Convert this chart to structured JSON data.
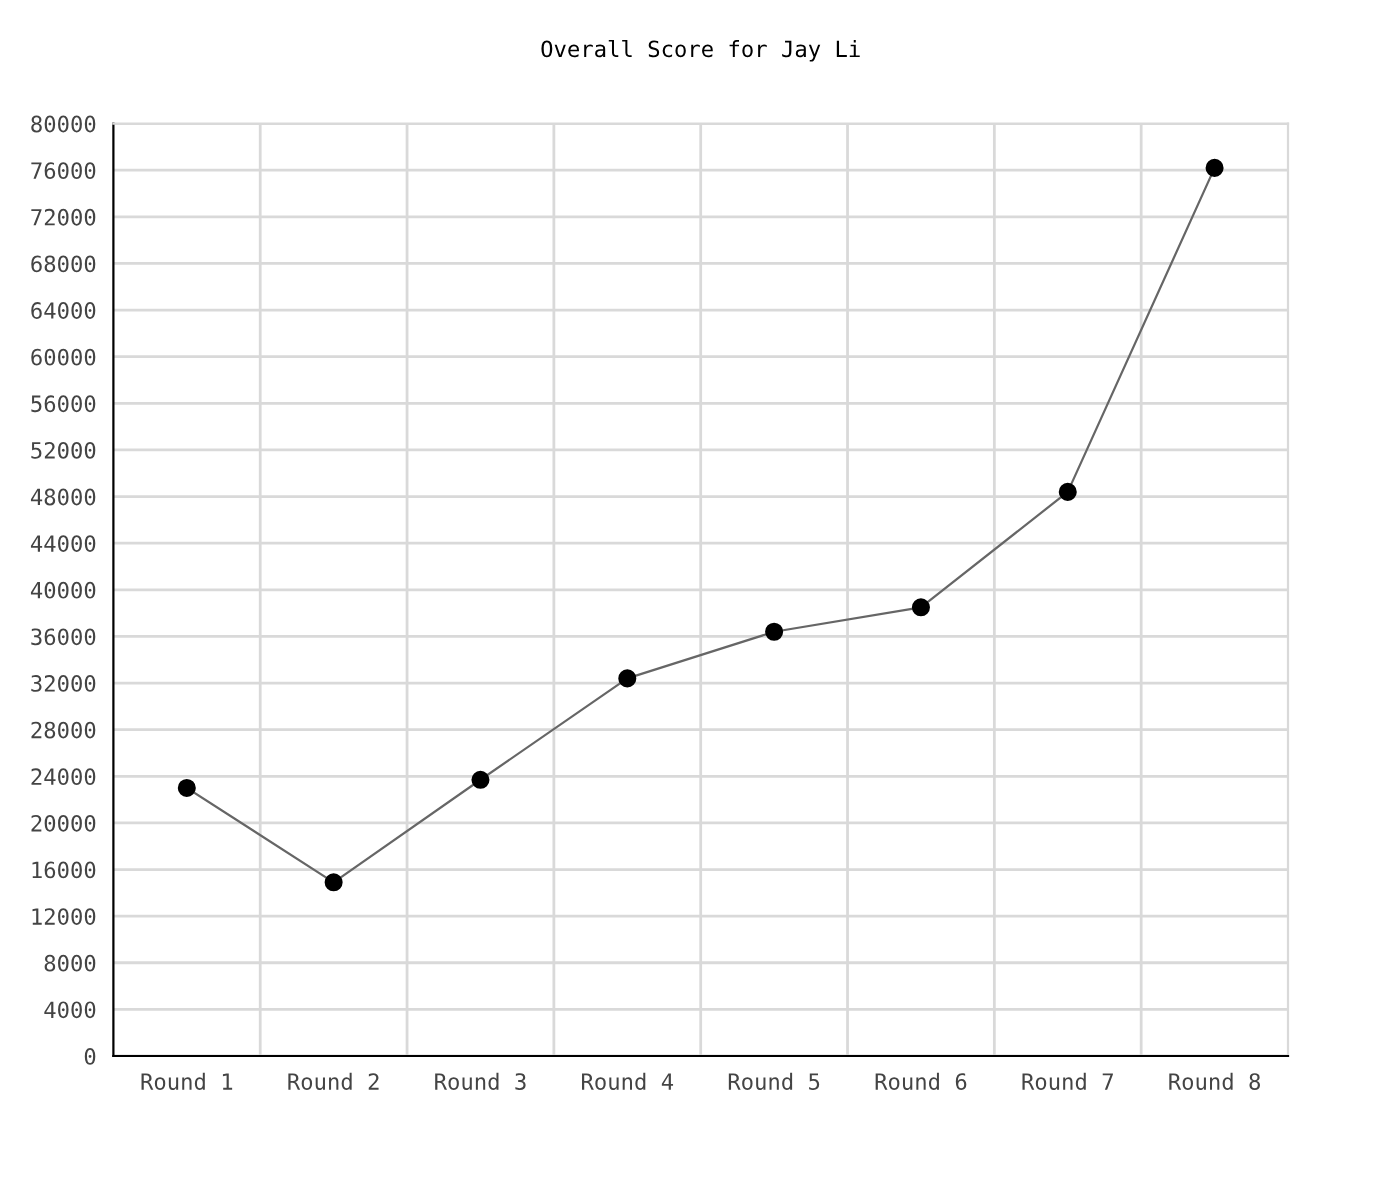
{
  "chart_data": {
    "type": "line",
    "title": "Overall Score for Jay Li",
    "categories": [
      "Round 1",
      "Round 2",
      "Round 3",
      "Round 4",
      "Round 5",
      "Round 6",
      "Round 7",
      "Round 8"
    ],
    "series": [
      {
        "color": "#000000",
        "values": [
          23000,
          14900,
          23700,
          32400,
          36400,
          38500,
          48400,
          76200
        ]
      }
    ],
    "ylim": [
      0,
      80000
    ],
    "yticks": [
      0,
      4000,
      8000,
      12000,
      16000,
      20000,
      24000,
      28000,
      32000,
      36000,
      40000,
      44000,
      48000,
      52000,
      56000,
      60000,
      64000,
      68000,
      72000,
      76000,
      80000
    ],
    "grid": true,
    "marker": "circle",
    "line_style": "solid"
  }
}
